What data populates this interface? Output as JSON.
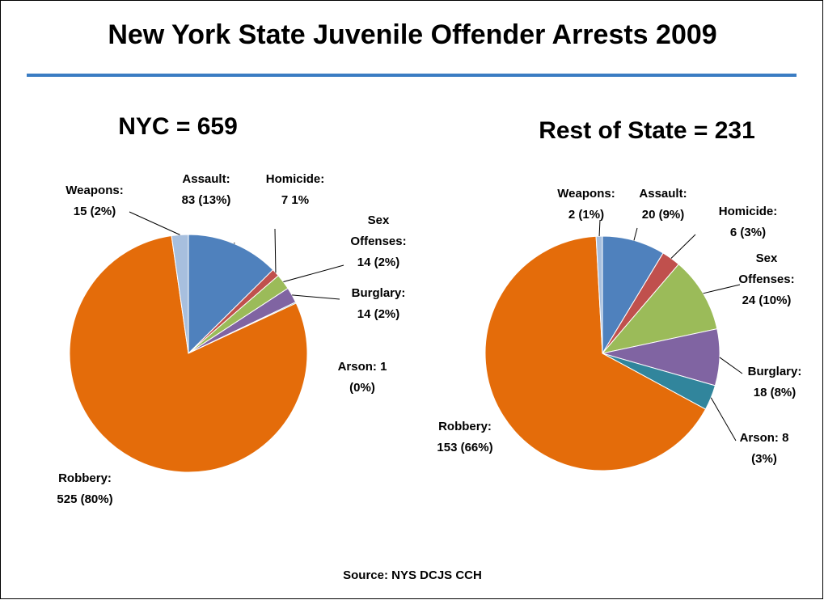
{
  "title": "New York State Juvenile Offender Arrests 2009",
  "source": "Source: NYS DCJS CCH",
  "chart_data": [
    {
      "type": "pie",
      "title": "NYC = 659",
      "labels": [
        [
          "Assault:",
          "83 (13%)"
        ],
        [
          "Homicide:",
          "7 1%"
        ],
        [
          "Sex",
          "Offenses:",
          "14 (2%)"
        ],
        [
          "Burglary:",
          "14 (2%)"
        ],
        [
          "Arson: 1",
          "(0%)"
        ],
        [
          "Robbery:",
          "525 (80%)"
        ],
        [
          "Weapons:",
          "15 (2%)"
        ]
      ],
      "values": [
        83,
        7,
        14,
        14,
        1,
        525,
        15
      ],
      "colors": [
        "#4f81bd",
        "#c0504d",
        "#9bbb59",
        "#8064a2",
        "#31859c",
        "#e46c0a",
        "#a7bfde"
      ]
    },
    {
      "type": "pie",
      "title": "Rest of State = 231",
      "labels": [
        [
          "Assault:",
          "20 (9%)"
        ],
        [
          "Homicide:",
          "6 (3%)"
        ],
        [
          "Sex",
          "Offenses:",
          "24 (10%)"
        ],
        [
          "Burglary:",
          "18 (8%)"
        ],
        [
          "Arson: 8",
          "(3%)"
        ],
        [
          "Robbery:",
          "153 (66%)"
        ],
        [
          "Weapons:",
          "2 (1%)"
        ]
      ],
      "values": [
        20,
        6,
        24,
        18,
        8,
        153,
        2
      ],
      "colors": [
        "#4f81bd",
        "#c0504d",
        "#9bbb59",
        "#8064a2",
        "#31859c",
        "#e46c0a",
        "#a7bfde"
      ]
    }
  ]
}
